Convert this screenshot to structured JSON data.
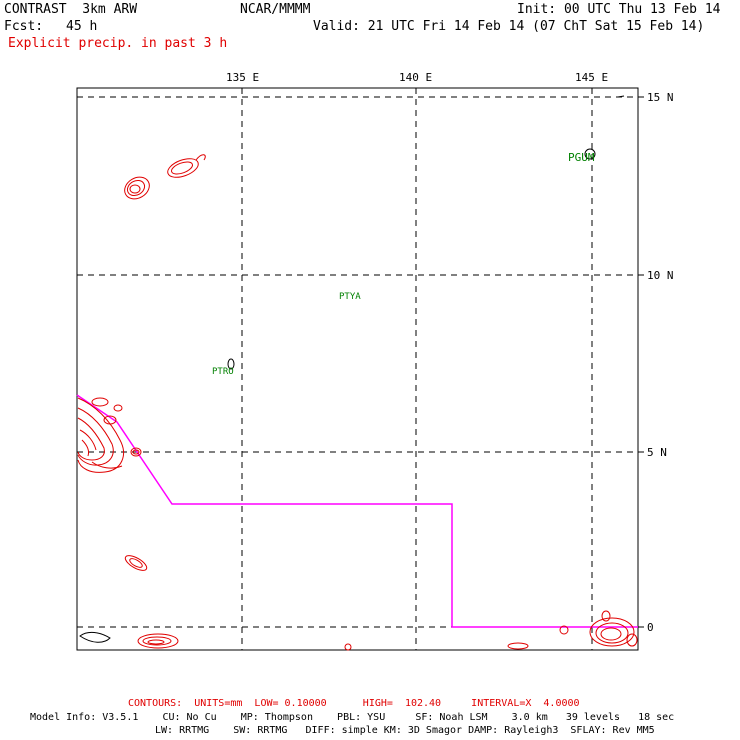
{
  "header": {
    "model_title": "CONTRAST  3km ARW",
    "center": "NCAR/MMMM",
    "init": "Init: 00 UTC Thu 13 Feb 14",
    "fcst_label": "Fcst:",
    "fcst_value": "45 h",
    "valid": "Valid: 21 UTC Fri 14 Feb 14 (07 ChT Sat 15 Feb 14)",
    "field": "Explicit precip. in past 3 h"
  },
  "map": {
    "lon_labels": [
      "135 E",
      "140 E",
      "145 E"
    ],
    "lat_labels": [
      "15 N",
      "10 N",
      "5 N",
      "0"
    ],
    "stations": [
      "PGUM",
      "PTYA",
      "PTRO"
    ],
    "colors": {
      "contour": "#e00000",
      "boundary": "#ff00ff",
      "station": "#008000",
      "grid": "#000000"
    }
  },
  "footer": {
    "contours": "CONTOURS:  UNITS=mm  LOW= 0.10000      HIGH=  102.40     INTERVAL=X  4.0000",
    "model_info_1": "Model Info: V3.5.1    CU: No Cu    MP: Thompson    PBL: YSU     SF: Noah LSM    3.0 km   39 levels   18 sec",
    "model_info_2": "LW: RRTMG    SW: RRTMG   DIFF: simple KM: 3D Smagor DAMP: Rayleigh3  SFLAY: Rev MM5"
  }
}
